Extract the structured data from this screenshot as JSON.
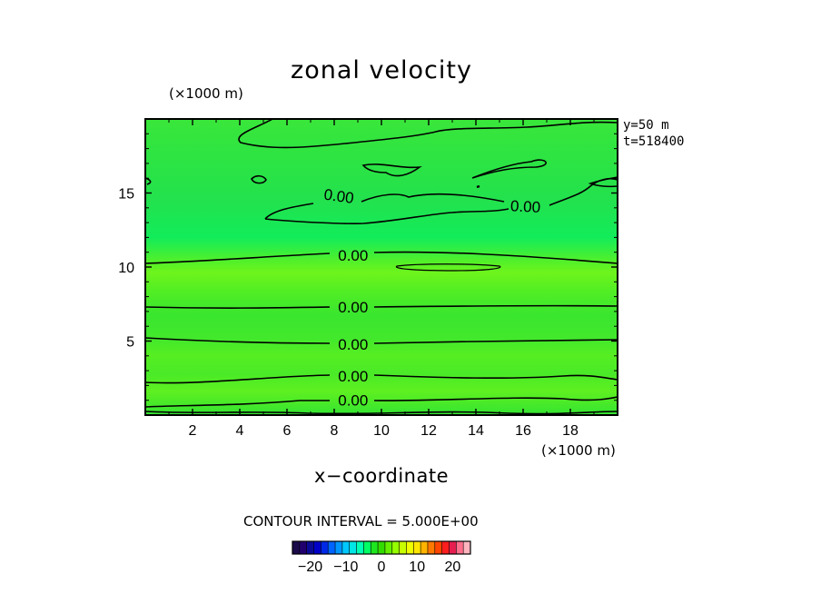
{
  "chart_data": {
    "type": "heatmap",
    "title": "zonal velocity",
    "xlabel": "x−coordinate",
    "x_unit": "(×1000 m)",
    "y_unit": "(×1000 m)",
    "xlim": [
      0,
      20
    ],
    "ylim": [
      0,
      20
    ],
    "x_ticks": [
      2,
      4,
      6,
      8,
      10,
      12,
      14,
      16,
      18
    ],
    "y_ticks": [
      5,
      10,
      15
    ],
    "info": [
      "y=50  m",
      "t=518400"
    ],
    "contour_interval_text": "CONTOUR INTERVAL = 5.000E+00",
    "contour_labels": [
      {
        "text": "0.00",
        "x": 8.2,
        "y": 14.8
      },
      {
        "text": "0.00",
        "x": 16.1,
        "y": 14.1
      },
      {
        "text": "0.00",
        "x": 8.8,
        "y": 10.8
      },
      {
        "text": "0.00",
        "x": 8.8,
        "y": 7.3
      },
      {
        "text": "0.00",
        "x": 8.8,
        "y": 4.8
      },
      {
        "text": "0.00",
        "x": 8.8,
        "y": 2.65
      },
      {
        "text": "0.00",
        "x": 8.8,
        "y": 1.0
      }
    ],
    "colorbar": {
      "min": -25,
      "max": 25,
      "tick_values": [
        -20,
        -10,
        0,
        10,
        20
      ],
      "tick_labels": [
        "−20",
        "−10",
        "0",
        "10",
        "20"
      ],
      "colors": [
        "#1a0a4a",
        "#21006e",
        "#0a0a96",
        "#0000c8",
        "#0028e6",
        "#0064ff",
        "#0096ff",
        "#00c8ff",
        "#00e6e6",
        "#00ffb4",
        "#00ff64",
        "#1ee61e",
        "#32dc00",
        "#64f000",
        "#96ff00",
        "#c8ff00",
        "#f0ff00",
        "#ffe600",
        "#ffb400",
        "#ff7800",
        "#ff4600",
        "#ff1e1e",
        "#e61e50",
        "#ff6e8c",
        "#ffb4be"
      ]
    }
  }
}
